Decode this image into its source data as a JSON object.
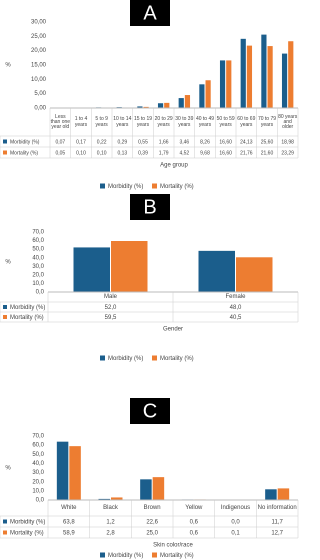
{
  "chart_data": [
    {
      "type": "bar",
      "panel": "A",
      "y_label": "%",
      "x_label": "Age group",
      "categories": [
        "Less than one year old",
        "1 to 4 years",
        "5 to 9 years",
        "10 to 14 years",
        "15 to 19 years",
        "20 to 29 years",
        "30 to 39 years",
        "40 to 49 years",
        "50 to 59 years",
        "60 to 69 years",
        "70 to 79 years",
        "80 years and older"
      ],
      "series": [
        {
          "name": "Morbidity (%)",
          "color": "#1b5e8c",
          "values": [
            0.07,
            0.17,
            0.22,
            0.29,
            0.55,
            1.66,
            3.46,
            8.26,
            16.6,
            24.13,
            25.6,
            18.98
          ],
          "value_labels": [
            "0,07",
            "0,17",
            "0,22",
            "0,29",
            "0,55",
            "1,66",
            "3,46",
            "8,26",
            "16,60",
            "24,13",
            "25,60",
            "18,98"
          ]
        },
        {
          "name": "Mortality (%)",
          "color": "#ed7d31",
          "values": [
            0.05,
            0.1,
            0.1,
            0.13,
            0.39,
            1.79,
            4.52,
            9.68,
            16.6,
            21.76,
            21.6,
            23.29
          ],
          "value_labels": [
            "0,05",
            "0,10",
            "0,10",
            "0,13",
            "0,39",
            "1,79",
            "4,52",
            "9,68",
            "16,60",
            "21,76",
            "21,60",
            "23,29"
          ]
        }
      ],
      "ylim": [
        0,
        30
      ],
      "yticks": [
        {
          "value": 0,
          "label": "0,00"
        },
        {
          "value": 5,
          "label": "5,00"
        },
        {
          "value": 10,
          "label": "10,00"
        },
        {
          "value": 15,
          "label": "15,00"
        },
        {
          "value": 20,
          "label": "20,00"
        },
        {
          "value": 25,
          "label": "25,00"
        },
        {
          "value": 30,
          "label": "30,00"
        }
      ],
      "grid": false
    },
    {
      "type": "bar",
      "panel": "B",
      "y_label": "%",
      "x_label": "Gender",
      "categories": [
        "Male",
        "Female"
      ],
      "series": [
        {
          "name": "Morbidity (%)",
          "color": "#1b5e8c",
          "values": [
            52.0,
            48.0
          ],
          "value_labels": [
            "52,0",
            "48,0"
          ]
        },
        {
          "name": "Mortality (%)",
          "color": "#ed7d31",
          "values": [
            59.5,
            40.5
          ],
          "value_labels": [
            "59,5",
            "40,5"
          ]
        }
      ],
      "ylim": [
        0,
        70
      ],
      "yticks": [
        {
          "value": 0,
          "label": "0,0"
        },
        {
          "value": 10,
          "label": "10,0"
        },
        {
          "value": 20,
          "label": "20,0"
        },
        {
          "value": 30,
          "label": "30,0"
        },
        {
          "value": 40,
          "label": "40,0"
        },
        {
          "value": 50,
          "label": "50,0"
        },
        {
          "value": 60,
          "label": "60,0"
        },
        {
          "value": 70,
          "label": "70,0"
        }
      ],
      "grid": false
    },
    {
      "type": "bar",
      "panel": "C",
      "y_label": "%",
      "x_label": "Skin color/race",
      "categories": [
        "White",
        "Black",
        "Brown",
        "Yellow",
        "Indigenous",
        "No information"
      ],
      "series": [
        {
          "name": "Morbidity (%)",
          "color": "#1b5e8c",
          "values": [
            63.8,
            1.2,
            22.6,
            0.6,
            0.0,
            11.7
          ],
          "value_labels": [
            "63,8",
            "1,2",
            "22,6",
            "0,6",
            "0,0",
            "11,7"
          ]
        },
        {
          "name": "Mortality (%)",
          "color": "#ed7d31",
          "values": [
            58.9,
            2.8,
            25.0,
            0.6,
            0.1,
            12.7
          ],
          "value_labels": [
            "58,9",
            "2,8",
            "25,0",
            "0,6",
            "0,1",
            "12,7"
          ]
        }
      ],
      "ylim": [
        0,
        70
      ],
      "yticks": [
        {
          "value": 0,
          "label": "0,0"
        },
        {
          "value": 10,
          "label": "10,0"
        },
        {
          "value": 20,
          "label": "20,0"
        },
        {
          "value": 30,
          "label": "30,0"
        },
        {
          "value": 40,
          "label": "40,0"
        },
        {
          "value": 50,
          "label": "50,0"
        },
        {
          "value": 60,
          "label": "60,0"
        },
        {
          "value": 70,
          "label": "70,0"
        }
      ],
      "grid": false
    }
  ]
}
